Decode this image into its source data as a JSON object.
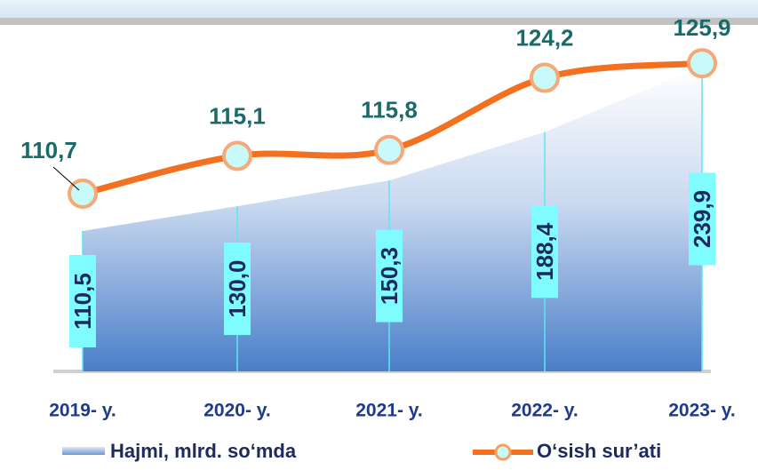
{
  "chart_data": {
    "type": "area-line",
    "categories": [
      "2019- y.",
      "2020- y.",
      "2021- y.",
      "2022- y.",
      "2023- y."
    ],
    "series": [
      {
        "name": "Hajmi, mlrd. so‘mda",
        "color": "#4a7ec8",
        "type": "area",
        "values": [
          110.5,
          130.0,
          150.3,
          188.4,
          239.9
        ],
        "value_labels": [
          "110,5",
          "130,0",
          "150,3",
          "188,4",
          "239,9"
        ]
      },
      {
        "name": "O‘sish sur’ati",
        "color": "#f37021",
        "type": "line",
        "axis": "y2",
        "values": [
          110.7,
          115.1,
          115.8,
          124.2,
          125.9
        ],
        "value_labels": [
          "110,7",
          "115,1",
          "115,8",
          "124,2",
          "125,9"
        ]
      }
    ],
    "ylim": [
      0,
      250
    ],
    "y2lim": [
      90,
      127
    ]
  }
}
